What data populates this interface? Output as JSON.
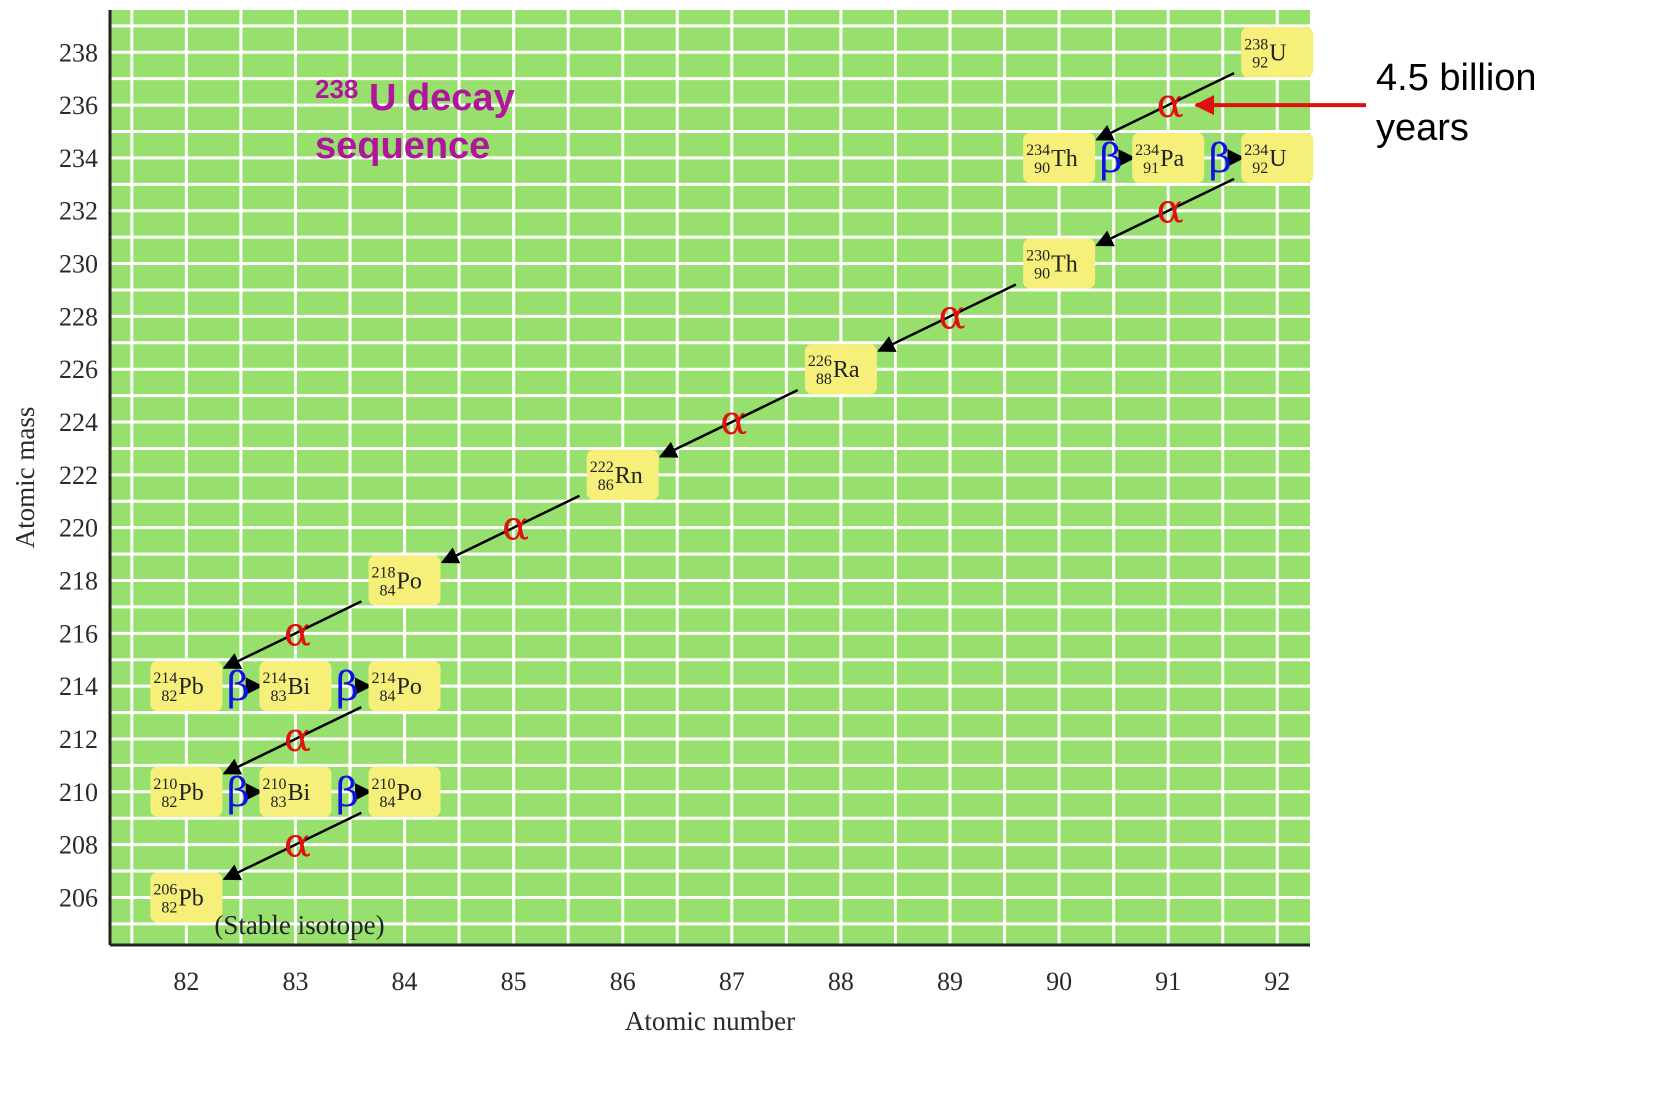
{
  "chart_data": {
    "type": "scatter",
    "title_parts": {
      "superscript": "238",
      "text": "U decay",
      "line2": "sequence"
    },
    "xlabel": "Atomic number",
    "ylabel": "Atomic mass",
    "xlim": [
      81.3,
      92.3
    ],
    "ylim": [
      204.2,
      239.6
    ],
    "x_ticks": [
      82,
      83,
      84,
      85,
      86,
      87,
      88,
      89,
      90,
      91,
      92
    ],
    "y_ticks": [
      206,
      208,
      210,
      212,
      214,
      216,
      218,
      220,
      222,
      224,
      226,
      228,
      230,
      232,
      234,
      236,
      238
    ],
    "grid": true,
    "colors": {
      "background": "#98e06e",
      "grid": "#ffffff",
      "box": "#f6f07a",
      "alpha": "#e01010",
      "beta": "#1010e0",
      "annotation_arrow": "#e01010",
      "title": "#b0169c"
    },
    "nuclides": [
      {
        "mass": "238",
        "z": "92",
        "symbol": "U",
        "x": 92,
        "y": 238
      },
      {
        "mass": "234",
        "z": "90",
        "symbol": "Th",
        "x": 90,
        "y": 234
      },
      {
        "mass": "234",
        "z": "91",
        "symbol": "Pa",
        "x": 91,
        "y": 234
      },
      {
        "mass": "234",
        "z": "92",
        "symbol": "U",
        "x": 92,
        "y": 234
      },
      {
        "mass": "230",
        "z": "90",
        "symbol": "Th",
        "x": 90,
        "y": 230
      },
      {
        "mass": "226",
        "z": "88",
        "symbol": "Ra",
        "x": 88,
        "y": 226
      },
      {
        "mass": "222",
        "z": "86",
        "symbol": "Rn",
        "x": 86,
        "y": 222
      },
      {
        "mass": "218",
        "z": "84",
        "symbol": "Po",
        "x": 84,
        "y": 218
      },
      {
        "mass": "214",
        "z": "82",
        "symbol": "Pb",
        "x": 82,
        "y": 214
      },
      {
        "mass": "214",
        "z": "83",
        "symbol": "Bi",
        "x": 83,
        "y": 214
      },
      {
        "mass": "214",
        "z": "84",
        "symbol": "Po",
        "x": 84,
        "y": 214
      },
      {
        "mass": "210",
        "z": "82",
        "symbol": "Pb",
        "x": 82,
        "y": 210
      },
      {
        "mass": "210",
        "z": "83",
        "symbol": "Bi",
        "x": 83,
        "y": 210
      },
      {
        "mass": "210",
        "z": "84",
        "symbol": "Po",
        "x": 84,
        "y": 210
      },
      {
        "mass": "206",
        "z": "82",
        "symbol": "Pb",
        "x": 82,
        "y": 206
      }
    ],
    "decays": [
      {
        "type": "alpha",
        "label": "α",
        "from": [
          92,
          238
        ],
        "to": [
          90,
          234
        ]
      },
      {
        "type": "beta",
        "label": "β",
        "from": [
          90,
          234
        ],
        "to": [
          91,
          234
        ]
      },
      {
        "type": "beta",
        "label": "β",
        "from": [
          91,
          234
        ],
        "to": [
          92,
          234
        ]
      },
      {
        "type": "alpha",
        "label": "α",
        "from": [
          92,
          234
        ],
        "to": [
          90,
          230
        ]
      },
      {
        "type": "alpha",
        "label": "α",
        "from": [
          90,
          230
        ],
        "to": [
          88,
          226
        ]
      },
      {
        "type": "alpha",
        "label": "α",
        "from": [
          88,
          226
        ],
        "to": [
          86,
          222
        ]
      },
      {
        "type": "alpha",
        "label": "α",
        "from": [
          86,
          222
        ],
        "to": [
          84,
          218
        ]
      },
      {
        "type": "alpha",
        "label": "α",
        "from": [
          84,
          218
        ],
        "to": [
          82,
          214
        ]
      },
      {
        "type": "beta",
        "label": "β",
        "from": [
          82,
          214
        ],
        "to": [
          83,
          214
        ]
      },
      {
        "type": "beta",
        "label": "β",
        "from": [
          83,
          214
        ],
        "to": [
          84,
          214
        ]
      },
      {
        "type": "alpha",
        "label": "α",
        "from": [
          84,
          214
        ],
        "to": [
          82,
          210
        ]
      },
      {
        "type": "beta",
        "label": "β",
        "from": [
          82,
          210
        ],
        "to": [
          83,
          210
        ]
      },
      {
        "type": "beta",
        "label": "β",
        "from": [
          83,
          210
        ],
        "to": [
          84,
          210
        ]
      },
      {
        "type": "alpha",
        "label": "α",
        "from": [
          84,
          210
        ],
        "to": [
          82,
          206
        ]
      }
    ],
    "annotations": {
      "stable_label": "(Stable isotope)",
      "half_life_line1": "4.5 billion",
      "half_life_line2": "years"
    }
  }
}
